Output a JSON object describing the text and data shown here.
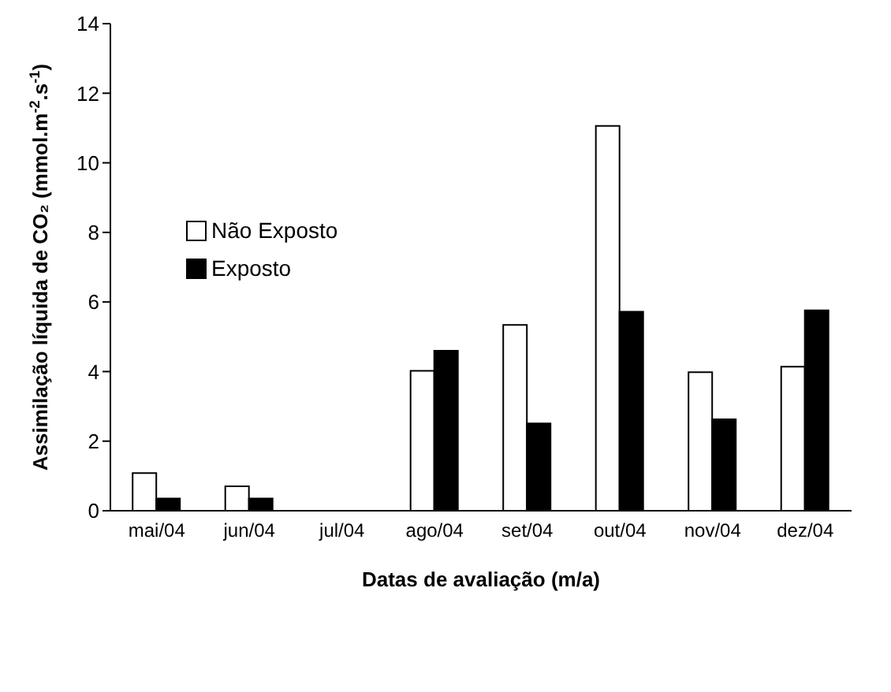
{
  "chart_data": {
    "type": "bar",
    "xlabel": "Datas de avaliação (m/a)",
    "ylabel": "Assimilação líquida de CO₂ (mmol.m$^{-2}$.s$^{-1}$)",
    "categories": [
      "mai/04",
      "jun/04",
      "jul/04",
      "ago/04",
      "set/04",
      "out/04",
      "nov/04",
      "dez/04"
    ],
    "series": [
      {
        "name": "Não Exposto",
        "color": "#ffffff",
        "values": [
          1.08,
          0.7,
          0,
          4.02,
          5.34,
          11.06,
          3.98,
          4.14
        ]
      },
      {
        "name": "Exposto",
        "color": "#000000",
        "values": [
          0.35,
          0.35,
          0,
          4.6,
          2.51,
          5.72,
          2.63,
          5.76
        ]
      }
    ],
    "ylim": [
      0,
      14
    ],
    "yticks": [
      0,
      2,
      4,
      6,
      8,
      10,
      12,
      14
    ],
    "grid": false,
    "legend": "top left"
  }
}
